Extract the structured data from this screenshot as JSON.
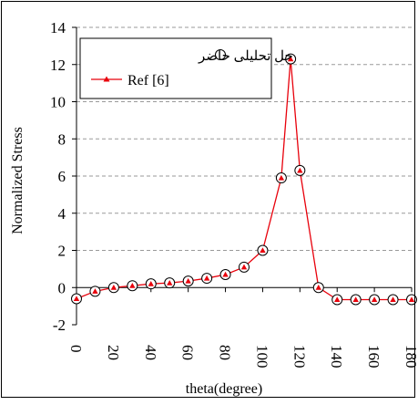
{
  "chart_data": {
    "type": "line",
    "xlabel": "theta(degree)",
    "ylabel": "Normalized Stress",
    "xlim": [
      0,
      180
    ],
    "ylim": [
      -2,
      14
    ],
    "x_ticks": [
      "0",
      "20",
      "40",
      "60",
      "80",
      "100",
      "120",
      "140",
      "160",
      "180"
    ],
    "y_ticks": [
      "-2",
      "0",
      "2",
      "4",
      "6",
      "8",
      "10",
      "12",
      "14"
    ],
    "grid": "horizontal-dashed",
    "legend_position": "top-left",
    "series": [
      {
        "name": "حل تحلیلی حاضر",
        "marker": "open-circle",
        "line": false,
        "color": "#000000",
        "x": [
          0,
          10,
          20,
          30,
          40,
          50,
          60,
          70,
          80,
          90,
          100,
          110,
          115,
          120,
          130,
          140,
          150,
          160,
          170,
          180
        ],
        "y": [
          -0.6,
          -0.2,
          0.0,
          0.1,
          0.2,
          0.25,
          0.35,
          0.5,
          0.7,
          1.1,
          2.0,
          5.9,
          12.3,
          6.3,
          0.0,
          -0.65,
          -0.65,
          -0.65,
          -0.65,
          -0.65
        ]
      },
      {
        "name": "Ref [6]",
        "marker": "filled-triangle",
        "line": true,
        "color": "#e8000b",
        "x": [
          0,
          10,
          20,
          30,
          40,
          50,
          60,
          70,
          80,
          90,
          100,
          110,
          115,
          120,
          130,
          140,
          150,
          160,
          170,
          180
        ],
        "y": [
          -0.6,
          -0.2,
          0.0,
          0.1,
          0.2,
          0.25,
          0.35,
          0.5,
          0.7,
          1.1,
          2.0,
          5.9,
          12.3,
          6.3,
          0.0,
          -0.65,
          -0.65,
          -0.65,
          -0.65,
          -0.65
        ]
      }
    ]
  }
}
